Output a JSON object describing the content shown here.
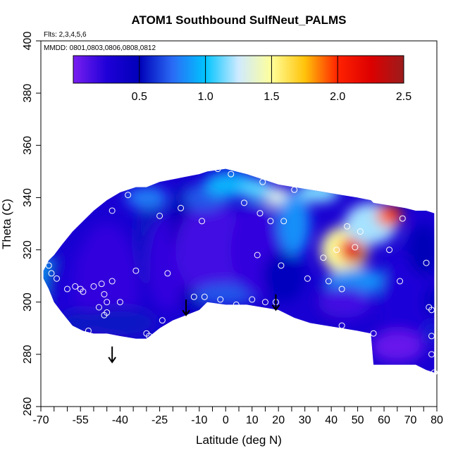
{
  "chart_data": {
    "type": "heatmap",
    "title": "ATOM1 Southbound SulfNeut_PALMS",
    "subtitle_flights": "Flts: 2,3,4,5,6",
    "subtitle_dates": "MMDD: 0801,0803,0806,0808,0812",
    "xlabel": "Latitude (deg N)",
    "ylabel": "Theta (C)",
    "xlim": [
      -70,
      80
    ],
    "ylim": [
      260,
      400
    ],
    "x_ticks": [
      -70,
      -55,
      -40,
      -25,
      -10,
      0,
      10,
      20,
      30,
      40,
      50,
      60,
      70,
      80
    ],
    "x_minor_ticks": [
      -65,
      -60,
      -50,
      -45,
      -35,
      -30,
      -20,
      -15,
      -5,
      5,
      15,
      25,
      35,
      45,
      55,
      65,
      75
    ],
    "x_tick_labels": [
      "-70",
      "-55",
      "-40",
      "-25",
      "-10",
      "0",
      "10",
      "20",
      "30",
      "40",
      "50",
      "60",
      "70",
      "80"
    ],
    "y_ticks": [
      260,
      280,
      300,
      320,
      340,
      360,
      380,
      400
    ],
    "y_tick_labels": [
      "260",
      "280",
      "300",
      "320",
      "340",
      "360",
      "380",
      "400"
    ],
    "colorbar": {
      "range": [
        0,
        2.5
      ],
      "ticks": [
        0.5,
        1.0,
        1.5,
        2.0,
        2.5
      ],
      "tick_labels": [
        "0.5",
        "1.0",
        "1.5",
        "2.0",
        "2.5"
      ],
      "stops": [
        {
          "v": 0.0,
          "color": "#7a1ff0"
        },
        {
          "v": 0.25,
          "color": "#1f00d8"
        },
        {
          "v": 0.5,
          "color": "#0000b8"
        },
        {
          "v": 0.75,
          "color": "#2a6bf5"
        },
        {
          "v": 1.0,
          "color": "#00c4ff"
        },
        {
          "v": 1.25,
          "color": "#cfeaff"
        },
        {
          "v": 1.5,
          "color": "#ffff9a"
        },
        {
          "v": 1.75,
          "color": "#ffc30a"
        },
        {
          "v": 2.0,
          "color": "#ff2200"
        },
        {
          "v": 2.25,
          "color": "#dd0000"
        },
        {
          "v": 2.5,
          "color": "#9c1c1c"
        }
      ]
    },
    "field_columns": [
      {
        "x": -69,
        "bottom": 309,
        "top": 312
      },
      {
        "x": -67,
        "bottom": 305,
        "top": 316
      },
      {
        "x": -65,
        "bottom": 300,
        "top": 318
      },
      {
        "x": -62,
        "bottom": 296,
        "top": 322
      },
      {
        "x": -58,
        "bottom": 291,
        "top": 327
      },
      {
        "x": -54,
        "bottom": 289,
        "top": 331
      },
      {
        "x": -50,
        "bottom": 288,
        "top": 335
      },
      {
        "x": -45,
        "bottom": 288,
        "top": 339
      },
      {
        "x": -40,
        "bottom": 287,
        "top": 342
      },
      {
        "x": -34,
        "bottom": 286,
        "top": 344
      },
      {
        "x": -30,
        "bottom": 286,
        "top": 344
      },
      {
        "x": -25,
        "bottom": 290,
        "top": 346
      },
      {
        "x": -20,
        "bottom": 293,
        "top": 347
      },
      {
        "x": -15,
        "bottom": 295,
        "top": 348
      },
      {
        "x": -10,
        "bottom": 297,
        "top": 349
      },
      {
        "x": -7,
        "bottom": 300,
        "top": 350
      },
      {
        "x": 0,
        "bottom": 299,
        "top": 351
      },
      {
        "x": 8,
        "bottom": 299,
        "top": 349
      },
      {
        "x": 14,
        "bottom": 298,
        "top": 347
      },
      {
        "x": 20,
        "bottom": 297,
        "top": 345
      },
      {
        "x": 26,
        "bottom": 294,
        "top": 344
      },
      {
        "x": 32,
        "bottom": 292,
        "top": 343
      },
      {
        "x": 38,
        "bottom": 291,
        "top": 342
      },
      {
        "x": 44,
        "bottom": 290,
        "top": 341
      },
      {
        "x": 50,
        "bottom": 289,
        "top": 340
      },
      {
        "x": 55,
        "bottom": 288,
        "top": 339
      },
      {
        "x": 56,
        "bottom": 276,
        "top": 338
      },
      {
        "x": 62,
        "bottom": 276,
        "top": 337
      },
      {
        "x": 68,
        "bottom": 276,
        "top": 336
      },
      {
        "x": 72,
        "bottom": 276,
        "top": 335
      },
      {
        "x": 76,
        "bottom": 274,
        "top": 335
      },
      {
        "x": 79,
        "bottom": 273,
        "top": 334
      }
    ],
    "field_blobs": [
      {
        "x": -69,
        "y": 310,
        "v": 0.9,
        "rx": 4,
        "ry": 8
      },
      {
        "x": -63,
        "y": 305,
        "v": 0.55,
        "rx": 6,
        "ry": 12
      },
      {
        "x": -55,
        "y": 300,
        "v": 0.25,
        "rx": 10,
        "ry": 20
      },
      {
        "x": -45,
        "y": 305,
        "v": 0.2,
        "rx": 12,
        "ry": 25
      },
      {
        "x": -40,
        "y": 292,
        "v": 0.55,
        "rx": 14,
        "ry": 6
      },
      {
        "x": -55,
        "y": 292,
        "v": 0.55,
        "rx": 8,
        "ry": 5
      },
      {
        "x": -28,
        "y": 325,
        "v": 0.55,
        "rx": 6,
        "ry": 20
      },
      {
        "x": -30,
        "y": 340,
        "v": 0.8,
        "rx": 8,
        "ry": 4
      },
      {
        "x": -22,
        "y": 315,
        "v": 0.2,
        "rx": 8,
        "ry": 18
      },
      {
        "x": -15,
        "y": 330,
        "v": 0.5,
        "rx": 6,
        "ry": 15
      },
      {
        "x": -12,
        "y": 302,
        "v": 0.5,
        "rx": 5,
        "ry": 6
      },
      {
        "x": -5,
        "y": 320,
        "v": 0.15,
        "rx": 14,
        "ry": 18
      },
      {
        "x": -8,
        "y": 340,
        "v": 0.7,
        "rx": 8,
        "ry": 5
      },
      {
        "x": 2,
        "y": 345,
        "v": 0.95,
        "rx": 10,
        "ry": 5
      },
      {
        "x": 0,
        "y": 303,
        "v": 0.7,
        "rx": 12,
        "ry": 4
      },
      {
        "x": 12,
        "y": 320,
        "v": 0.2,
        "rx": 10,
        "ry": 18
      },
      {
        "x": 12,
        "y": 343,
        "v": 1.1,
        "rx": 6,
        "ry": 4
      },
      {
        "x": 20,
        "y": 340,
        "v": 1.3,
        "rx": 5,
        "ry": 4
      },
      {
        "x": 22,
        "y": 310,
        "v": 0.45,
        "rx": 8,
        "ry": 10
      },
      {
        "x": 26,
        "y": 330,
        "v": 0.85,
        "rx": 6,
        "ry": 12
      },
      {
        "x": 35,
        "y": 342,
        "v": 1.15,
        "rx": 8,
        "ry": 4
      },
      {
        "x": 40,
        "y": 300,
        "v": 0.4,
        "rx": 6,
        "ry": 8
      },
      {
        "x": 45,
        "y": 320,
        "v": 1.5,
        "rx": 9,
        "ry": 9
      },
      {
        "x": 48,
        "y": 320,
        "v": 2.1,
        "rx": 5,
        "ry": 5
      },
      {
        "x": 50,
        "y": 318,
        "v": 2.35,
        "rx": 3,
        "ry": 3
      },
      {
        "x": 50,
        "y": 308,
        "v": 0.85,
        "rx": 12,
        "ry": 5
      },
      {
        "x": 55,
        "y": 330,
        "v": 1.2,
        "rx": 10,
        "ry": 8
      },
      {
        "x": 62,
        "y": 333,
        "v": 1.9,
        "rx": 5,
        "ry": 4
      },
      {
        "x": 64,
        "y": 333,
        "v": 2.1,
        "rx": 3,
        "ry": 2
      },
      {
        "x": 45,
        "y": 300,
        "v": 0.15,
        "rx": 10,
        "ry": 6
      },
      {
        "x": 68,
        "y": 300,
        "v": 0.25,
        "rx": 10,
        "ry": 18
      },
      {
        "x": 65,
        "y": 283,
        "v": 0.05,
        "rx": 10,
        "ry": 6
      },
      {
        "x": 75,
        "y": 320,
        "v": 0.5,
        "rx": 6,
        "ry": 10
      },
      {
        "x": 78,
        "y": 300,
        "v": 0.45,
        "rx": 3,
        "ry": 6
      },
      {
        "x": 78,
        "y": 288,
        "v": 0.6,
        "rx": 2,
        "ry": 4
      }
    ],
    "obs_points": [
      [
        -67,
        314
      ],
      [
        -66,
        311
      ],
      [
        -64,
        309
      ],
      [
        -60,
        305
      ],
      [
        -55,
        305
      ],
      [
        -54,
        304
      ],
      [
        -50,
        306
      ],
      [
        -47,
        307
      ],
      [
        -46,
        303
      ],
      [
        -45,
        300
      ],
      [
        -45,
        296
      ],
      [
        -46,
        295
      ],
      [
        -48,
        298
      ],
      [
        -40,
        300
      ],
      [
        -34,
        312
      ],
      [
        -30,
        288
      ],
      [
        -29,
        287
      ],
      [
        -22,
        311
      ],
      [
        -17,
        336
      ],
      [
        -12,
        302
      ],
      [
        -8,
        302
      ],
      [
        -9,
        331
      ],
      [
        -3,
        351
      ],
      [
        -2,
        301
      ],
      [
        2,
        349
      ],
      [
        4,
        299
      ],
      [
        7,
        338
      ],
      [
        10,
        301
      ],
      [
        12,
        318
      ],
      [
        13,
        334
      ],
      [
        15,
        300
      ],
      [
        17,
        331
      ],
      [
        19,
        300
      ],
      [
        21,
        314
      ],
      [
        22,
        331
      ],
      [
        14,
        346
      ],
      [
        26,
        343
      ],
      [
        31,
        309
      ],
      [
        37,
        317
      ],
      [
        39,
        308
      ],
      [
        42,
        320
      ],
      [
        44,
        305
      ],
      [
        44,
        291
      ],
      [
        46,
        329
      ],
      [
        49,
        321
      ],
      [
        51,
        327
      ],
      [
        56,
        288
      ],
      [
        62,
        320
      ],
      [
        66,
        308
      ],
      [
        67,
        332
      ],
      [
        76,
        315
      ],
      [
        77,
        298
      ],
      [
        78,
        297
      ],
      [
        78,
        287
      ],
      [
        78,
        280
      ],
      [
        79,
        273
      ],
      [
        -57,
        306
      ],
      [
        -59,
        289
      ],
      [
        -52,
        289
      ],
      [
        -43,
        335
      ],
      [
        -37,
        341
      ],
      [
        -24,
        293
      ],
      [
        -25,
        333
      ],
      [
        -43,
        308
      ]
    ],
    "arrows": [
      {
        "x": -43,
        "y_from": 283,
        "y_to": 277
      },
      {
        "x": -15,
        "y_from": 301,
        "y_to": 295
      },
      {
        "x": 19,
        "y_from": 303,
        "y_to": 297
      }
    ]
  }
}
